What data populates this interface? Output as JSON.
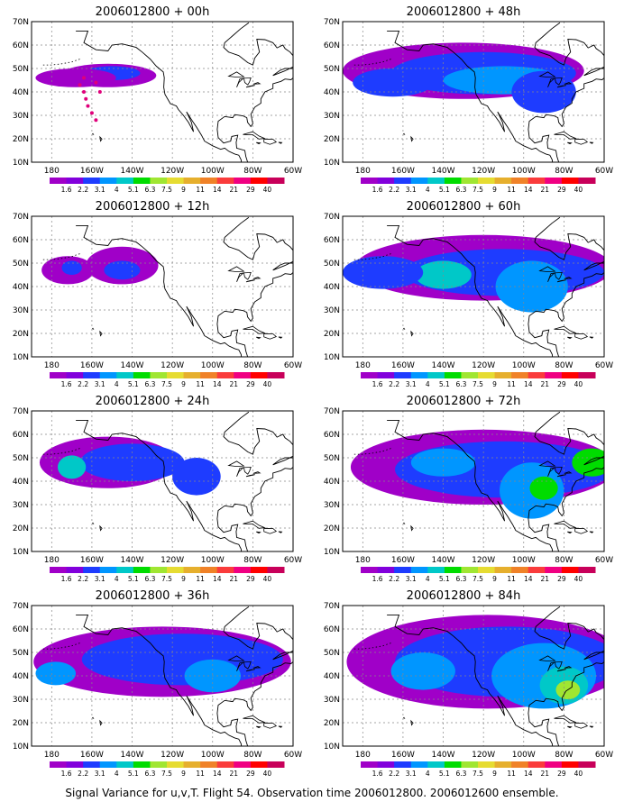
{
  "panels": [
    {
      "title": "2006012800 + 00h",
      "forecast_hour": 0,
      "has_track": true
    },
    {
      "title": "2006012800 + 48h",
      "forecast_hour": 48
    },
    {
      "title": "2006012800 + 12h",
      "forecast_hour": 12
    },
    {
      "title": "2006012800 + 60h",
      "forecast_hour": 60
    },
    {
      "title": "2006012800 + 24h",
      "forecast_hour": 24
    },
    {
      "title": "2006012800 + 72h",
      "forecast_hour": 72
    },
    {
      "title": "2006012800 + 36h",
      "forecast_hour": 36
    },
    {
      "title": "2006012800 + 84h",
      "forecast_hour": 84
    }
  ],
  "axes": {
    "lon_ticks": [
      "180",
      "160W",
      "140W",
      "120W",
      "100W",
      "80W",
      "60W"
    ],
    "lat_ticks": [
      "70N",
      "60N",
      "50N",
      "40N",
      "30N",
      "20N",
      "10N"
    ]
  },
  "colorbar": {
    "labels": [
      "1.6",
      "2.2",
      "3.1",
      "4",
      "5.1",
      "6.3",
      "7.5",
      "9",
      "11",
      "14",
      "21",
      "29",
      "40"
    ],
    "colors": [
      "#a000c8",
      "#8200dc",
      "#1e3cff",
      "#0096ff",
      "#00c8c8",
      "#00dc00",
      "#a0e632",
      "#e6dc32",
      "#e6af2d",
      "#f08228",
      "#fa3c3c",
      "#f00082",
      "#ff0000",
      "#c8005a"
    ]
  },
  "footer": "Signal Variance for u,v,T. Flight 54. Observation time 2006012800. 2006012600 ensemble."
}
